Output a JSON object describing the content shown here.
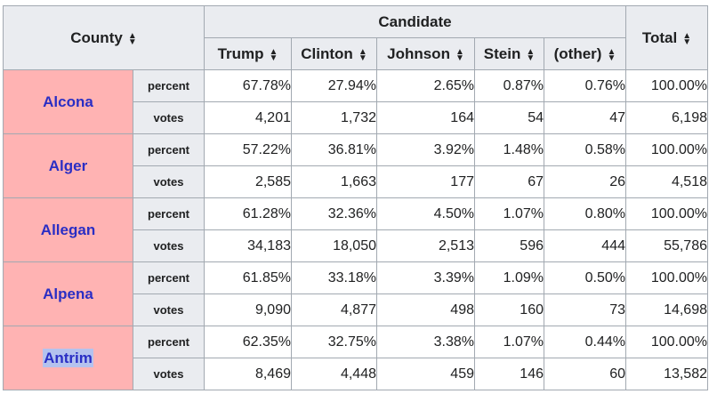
{
  "header": {
    "county": "County",
    "candidate_group": "Candidate",
    "total": "Total",
    "candidates": [
      "Trump",
      "Clinton",
      "Johnson",
      "Stein",
      "(other)"
    ]
  },
  "labels": {
    "percent": "percent",
    "votes": "votes"
  },
  "counties": [
    {
      "name": "Alcona",
      "percent": [
        "67.78%",
        "27.94%",
        "2.65%",
        "0.87%",
        "0.76%",
        "100.00%"
      ],
      "votes": [
        "4,201",
        "1,732",
        "164",
        "54",
        "47",
        "6,198"
      ]
    },
    {
      "name": "Alger",
      "percent": [
        "57.22%",
        "36.81%",
        "3.92%",
        "1.48%",
        "0.58%",
        "100.00%"
      ],
      "votes": [
        "2,585",
        "1,663",
        "177",
        "67",
        "26",
        "4,518"
      ]
    },
    {
      "name": "Allegan",
      "percent": [
        "61.28%",
        "32.36%",
        "4.50%",
        "1.07%",
        "0.80%",
        "100.00%"
      ],
      "votes": [
        "34,183",
        "18,050",
        "2,513",
        "596",
        "444",
        "55,786"
      ]
    },
    {
      "name": "Alpena",
      "percent": [
        "61.85%",
        "33.18%",
        "3.39%",
        "1.09%",
        "0.50%",
        "100.00%"
      ],
      "votes": [
        "9,090",
        "4,877",
        "498",
        "160",
        "73",
        "14,698"
      ]
    },
    {
      "name": "Antrim",
      "percent": [
        "62.35%",
        "32.75%",
        "3.38%",
        "1.07%",
        "0.44%",
        "100.00%"
      ],
      "votes": [
        "8,469",
        "4,448",
        "459",
        "146",
        "60",
        "13,582"
      ]
    }
  ],
  "colors": {
    "county_cell": "#ffb3b3",
    "header_bg": "#eaecf0",
    "link": "#2a2ec4",
    "selection_highlight": "#b4c2ee",
    "border": "#a2a9b1"
  }
}
